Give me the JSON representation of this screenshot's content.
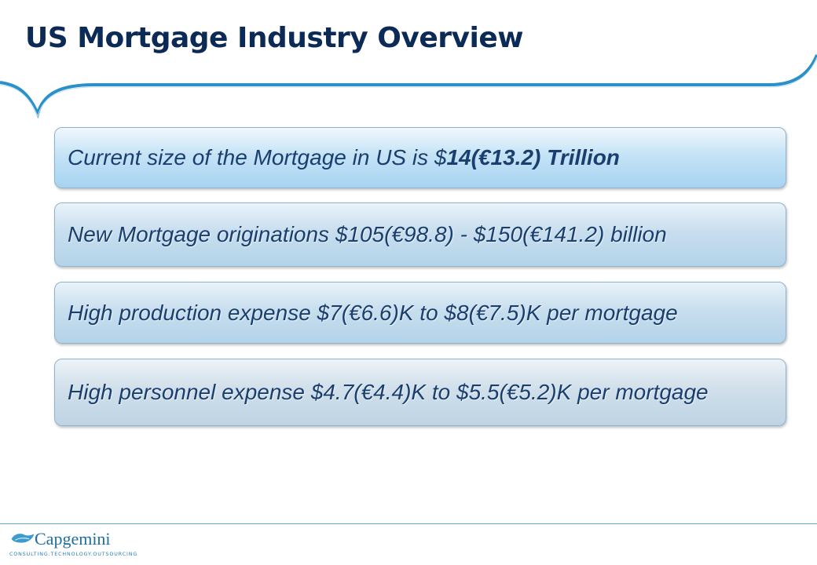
{
  "slide": {
    "title": "US Mortgage Industry Overview"
  },
  "points": [
    {
      "prefix": "Current size of the Mortgage in US is $",
      "emphasis": "14(€13.2) Trillion"
    },
    {
      "text": "New Mortgage originations $105(€98.8) - $150(€141.2) billion"
    },
    {
      "text": "High production expense $7(€6.6)K to $8(€7.5)K per mortgage"
    },
    {
      "text": "High personnel expense $4.7(€4.4)K to $5.5(€5.2)K per mortgage"
    }
  ],
  "footer": {
    "brand": "Capgemini",
    "tagline": "CONSULTING.TECHNOLOGY.OUTSOURCING"
  },
  "colors": {
    "title": "#0b2a55",
    "accent_wave": "#2b8fc8",
    "body_text": "#1a3f6e"
  }
}
